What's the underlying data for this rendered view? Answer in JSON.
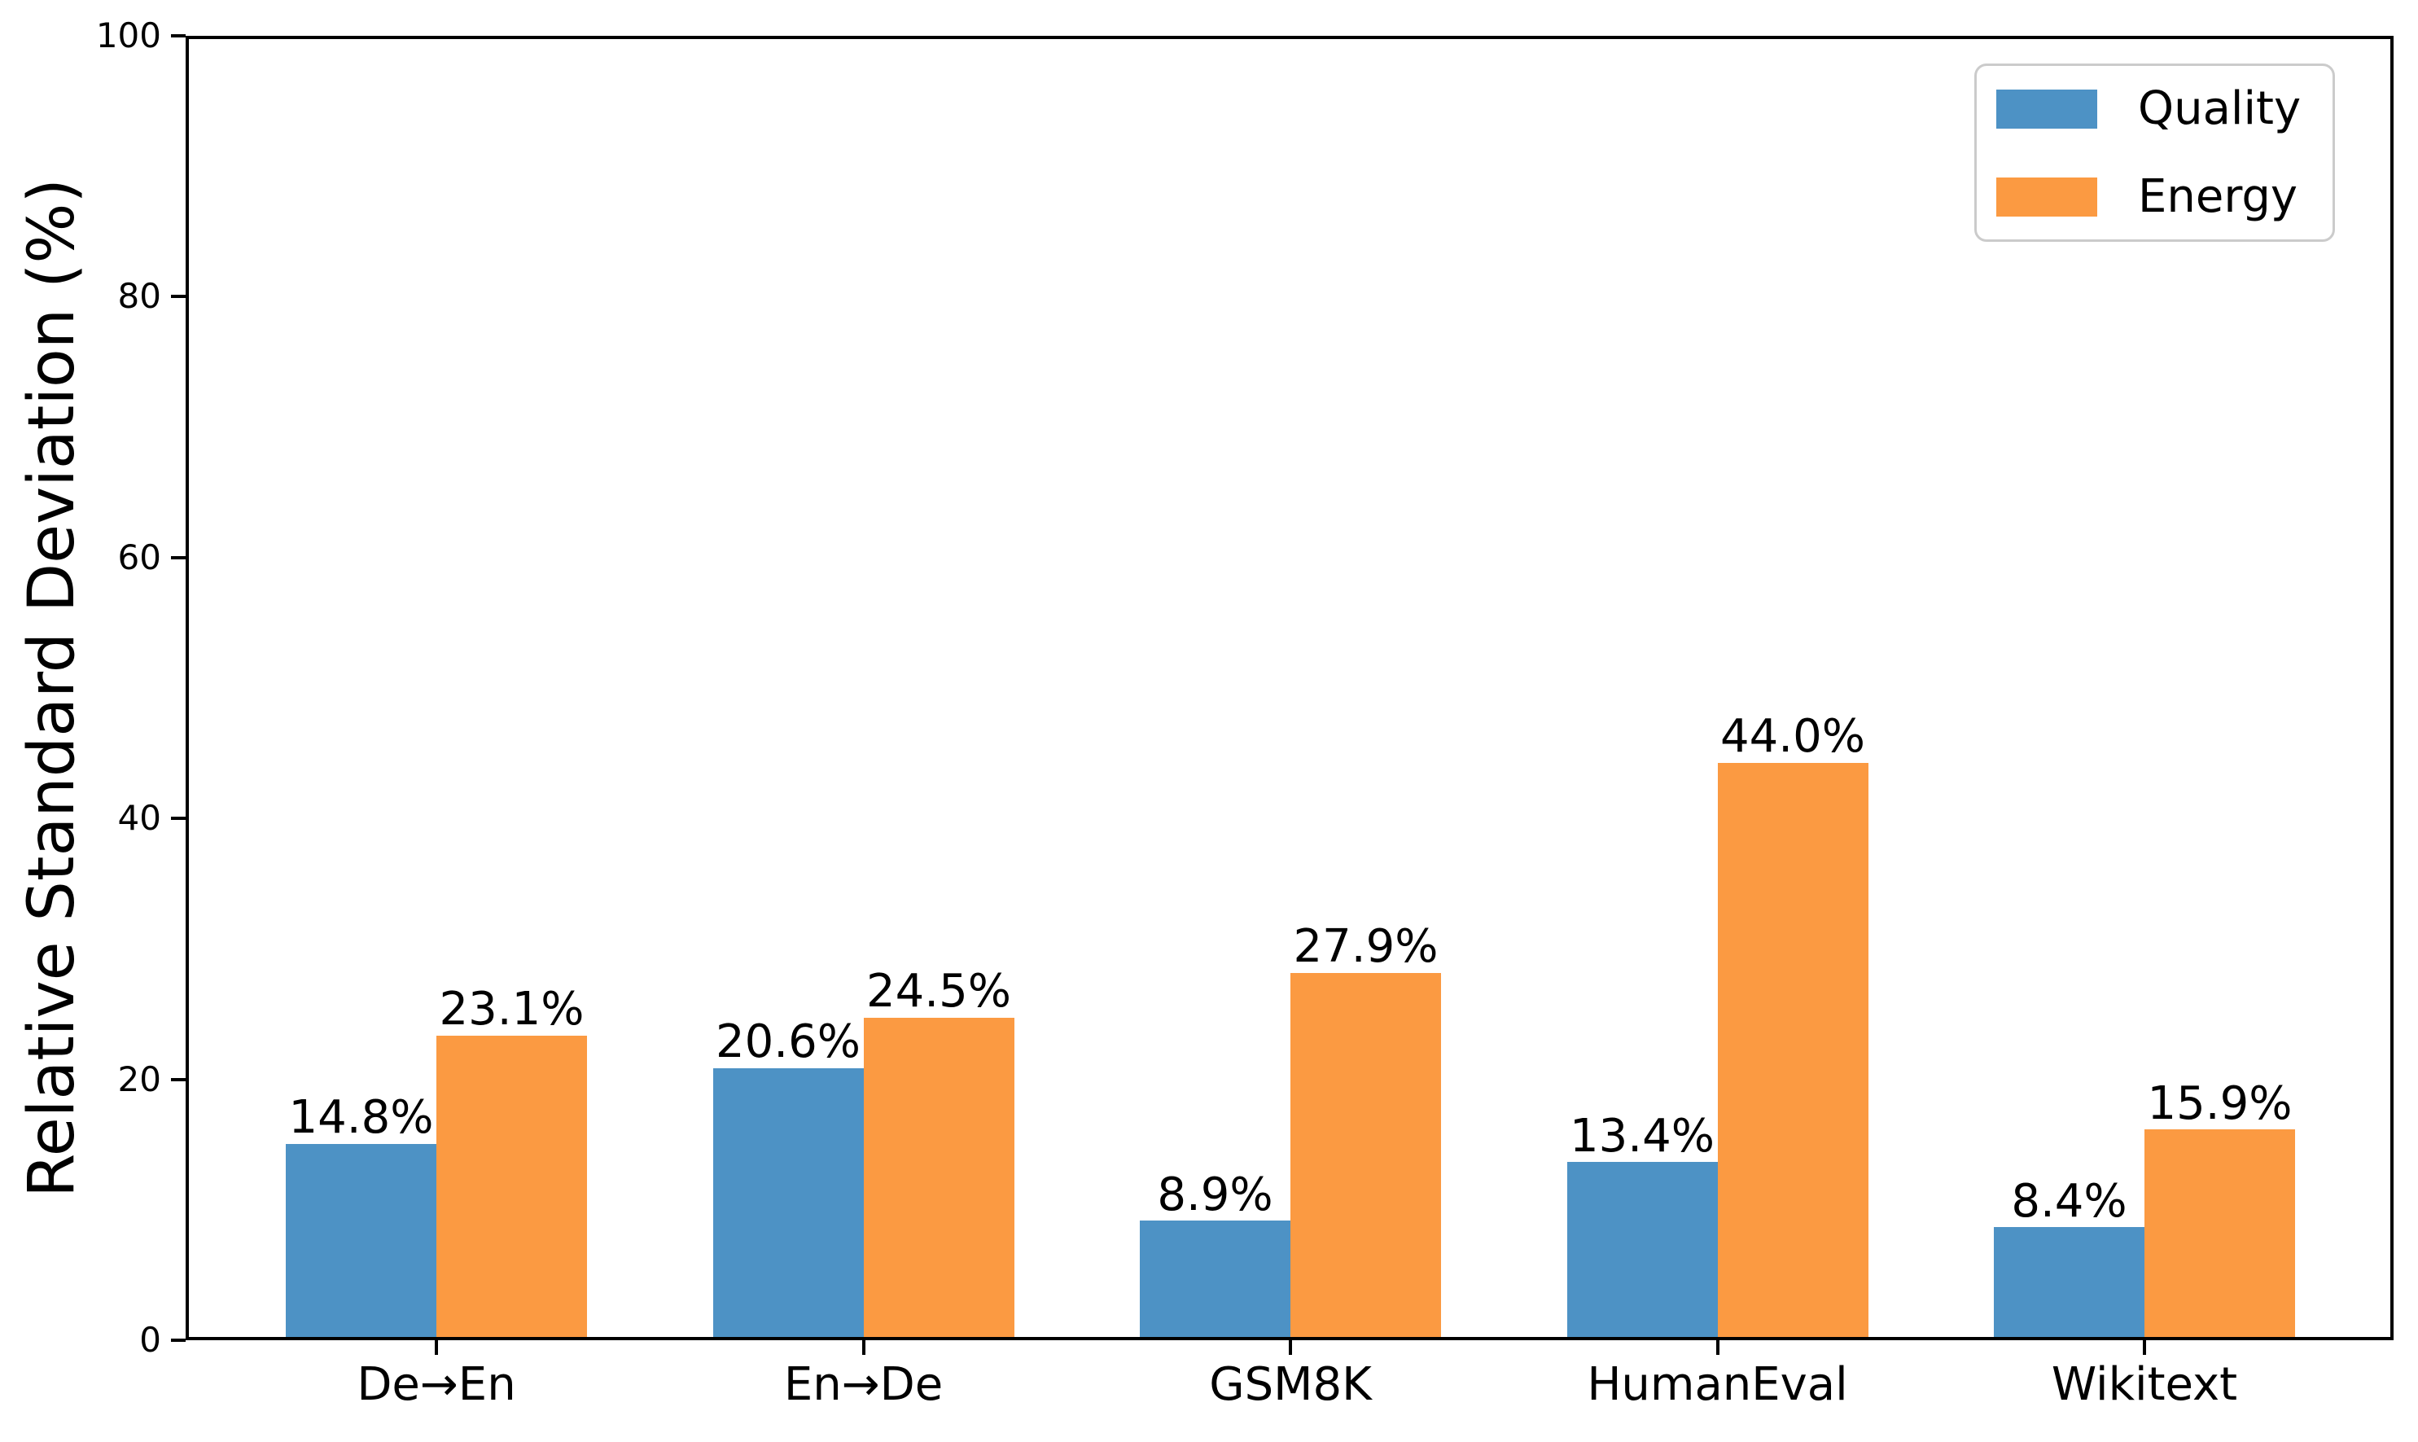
{
  "chart_data": {
    "type": "bar",
    "title": "",
    "xlabel": "",
    "ylabel": "Relative Standard Deviation (%)",
    "ylim": [
      0,
      100
    ],
    "yticks": [
      0,
      20,
      40,
      60,
      80,
      100
    ],
    "grid": false,
    "legend_position": "upper right",
    "categories": [
      "De→En",
      "En→De",
      "GSM8K",
      "HumanEval",
      "Wikitext"
    ],
    "series": [
      {
        "name": "Quality",
        "color": "#4D92C5",
        "values": [
          14.8,
          20.6,
          8.9,
          13.4,
          8.4
        ],
        "value_labels": [
          "14.8%",
          "20.6%",
          "8.9%",
          "13.4%",
          "8.4%"
        ]
      },
      {
        "name": "Energy",
        "color": "#FB9A42",
        "values": [
          23.1,
          24.5,
          27.9,
          44.0,
          15.9
        ],
        "value_labels": [
          "23.1%",
          "24.5%",
          "27.9%",
          "44.0%",
          "15.9%"
        ]
      }
    ]
  }
}
